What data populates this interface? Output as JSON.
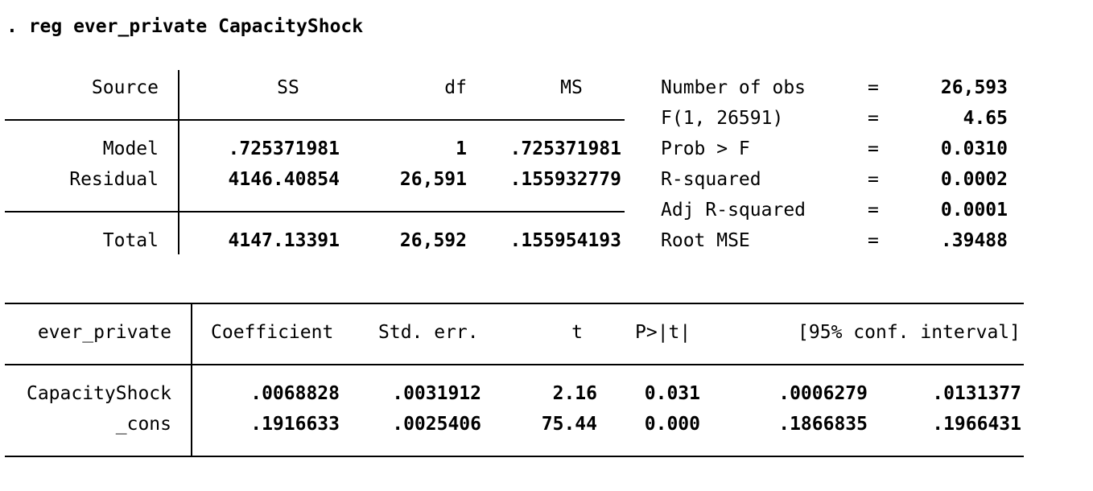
{
  "command": ". reg ever_private CapacityShock",
  "anova": {
    "headers": {
      "source": "Source",
      "ss": "SS",
      "df": "df",
      "ms": "MS"
    },
    "rows": [
      {
        "source": "Model",
        "ss": ".725371981",
        "df": "1",
        "ms": ".725371981"
      },
      {
        "source": "Residual",
        "ss": "4146.40854",
        "df": "26,591",
        "ms": ".155932779"
      },
      {
        "source": "Total",
        "ss": "4147.13391",
        "df": "26,592",
        "ms": ".155954193"
      }
    ]
  },
  "stats": [
    {
      "label": "Number of obs",
      "eq": "=",
      "value": "26,593"
    },
    {
      "label": "F(1, 26591)",
      "eq": "=",
      "value": "4.65"
    },
    {
      "label": "Prob > F",
      "eq": "=",
      "value": "0.0310"
    },
    {
      "label": "R-squared",
      "eq": "=",
      "value": "0.0002"
    },
    {
      "label": "Adj R-squared",
      "eq": "=",
      "value": "0.0001"
    },
    {
      "label": "Root MSE",
      "eq": "=",
      "value": ".39488"
    }
  ],
  "coef": {
    "headers": {
      "depvar": "ever_private",
      "coefficient": "Coefficient",
      "stderr": "Std. err.",
      "t": "t",
      "p": "P>|t|",
      "ci": "[95% conf. interval]"
    },
    "rows": [
      {
        "var": "CapacityShock",
        "coef": ".0068828",
        "se": ".0031912",
        "t": "2.16",
        "p": "0.031",
        "lo": ".0006279",
        "hi": ".0131377"
      },
      {
        "var": "_cons",
        "coef": ".1916633",
        "se": ".0025406",
        "t": "75.44",
        "p": "0.000",
        "lo": ".1866835",
        "hi": ".1966431"
      }
    ]
  }
}
